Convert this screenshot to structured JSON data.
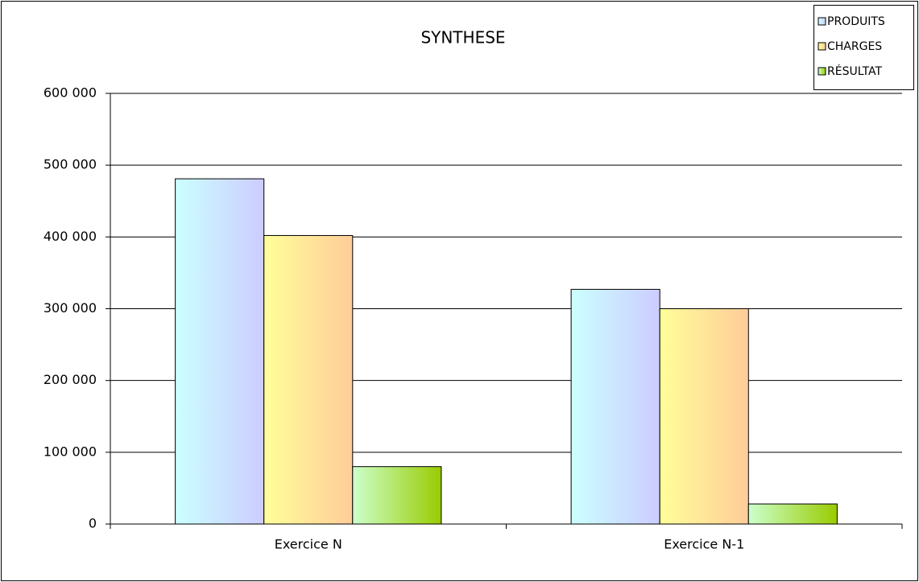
{
  "chart_data": {
    "type": "bar",
    "title": "SYNTHESE",
    "categories": [
      "Exercice N",
      "Exercice N-1"
    ],
    "series": [
      {
        "name": "PRODUITS",
        "color": [
          "#ccffff",
          "#ccccff"
        ],
        "values": [
          481000,
          327000
        ]
      },
      {
        "name": "CHARGES",
        "color": [
          "#ffff99",
          "#ffcc99"
        ],
        "values": [
          402000,
          300000
        ]
      },
      {
        "name": "RÉSULTAT",
        "color": [
          "#ccffcc",
          "#99cc00"
        ],
        "values": [
          80000,
          28000
        ]
      }
    ],
    "ylim": [
      0,
      600000
    ],
    "yticks": [
      0,
      {
        "value": 100000,
        "label": "100 000"
      },
      {
        "value": 200000,
        "label": "200 000"
      },
      {
        "value": 300000,
        "label": "300 000"
      },
      {
        "value": 400000,
        "label": "400 000"
      },
      {
        "value": 500000,
        "label": "500 000"
      },
      {
        "value": 600000,
        "label": "600 000"
      }
    ],
    "grid": true,
    "legend": "top-right"
  }
}
